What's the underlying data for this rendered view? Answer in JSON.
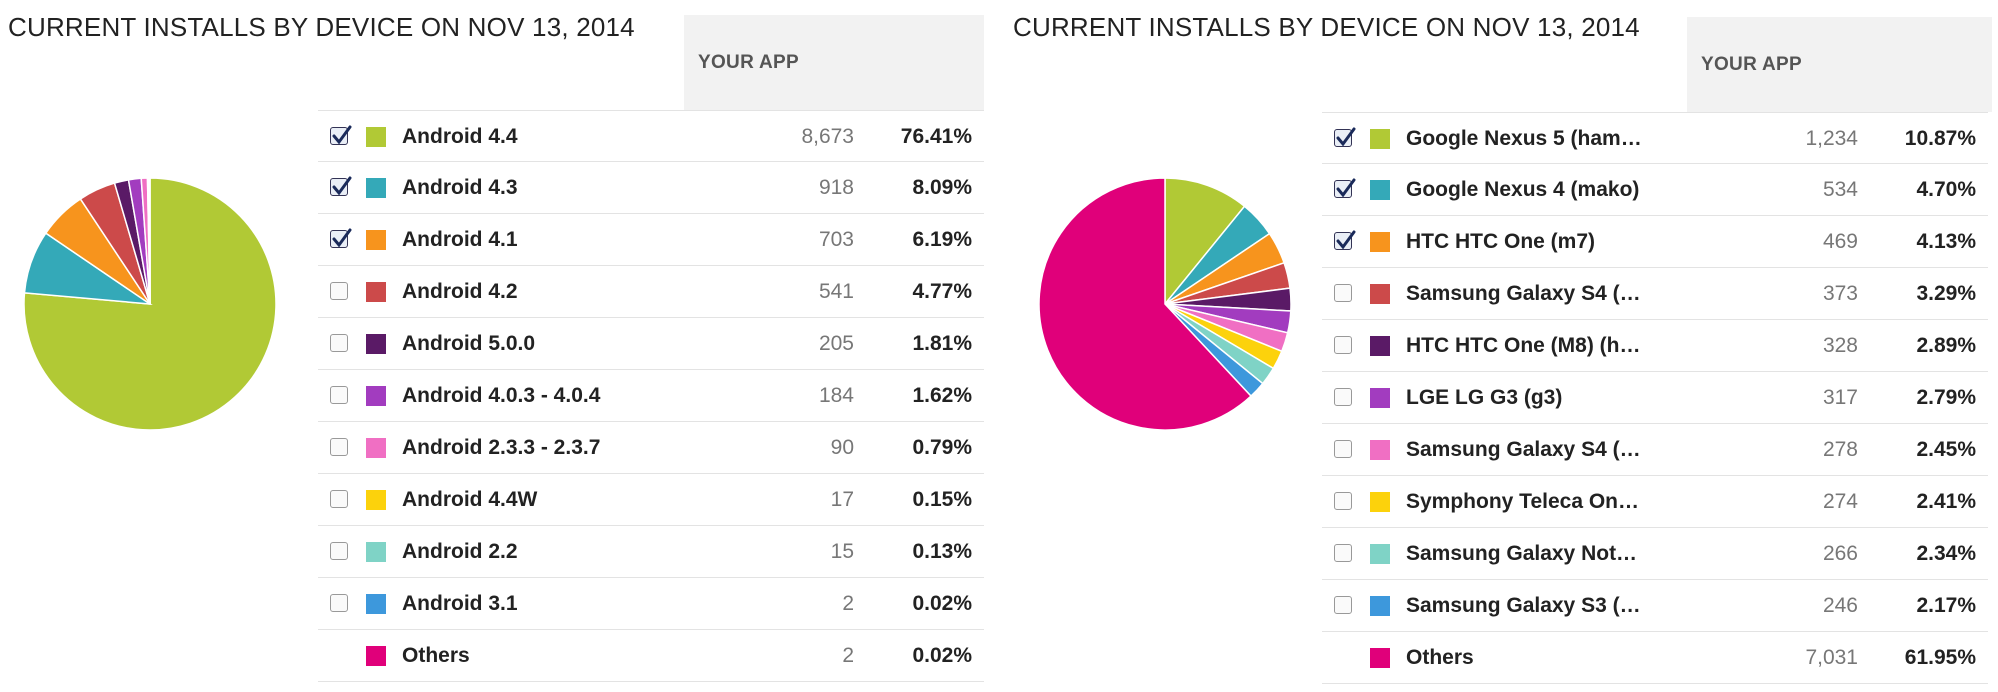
{
  "chart_data": [
    {
      "type": "pie",
      "title": "CURRENT INSTALLS BY DEVICE ON NOV 13, 2014",
      "column_header": "YOUR APP",
      "legend": "right",
      "slices": [
        {
          "label": "Android 4.4",
          "count": "8,673",
          "value": 76.41,
          "percent": "76.41%",
          "color": "#b1c935",
          "checked": true
        },
        {
          "label": "Android 4.3",
          "count": "918",
          "value": 8.09,
          "percent": "8.09%",
          "color": "#34a9b8",
          "checked": true
        },
        {
          "label": "Android 4.1",
          "count": "703",
          "value": 6.19,
          "percent": "6.19%",
          "color": "#f7941d",
          "checked": true
        },
        {
          "label": "Android 4.2",
          "count": "541",
          "value": 4.77,
          "percent": "4.77%",
          "color": "#cc4a4a",
          "checked": false
        },
        {
          "label": "Android 5.0.0",
          "count": "205",
          "value": 1.81,
          "percent": "1.81%",
          "color": "#5a1a66",
          "checked": false
        },
        {
          "label": "Android 4.0.3 - 4.0.4",
          "count": "184",
          "value": 1.62,
          "percent": "1.62%",
          "color": "#a23cbf",
          "checked": false
        },
        {
          "label": "Android 2.3.3 - 2.3.7",
          "count": "90",
          "value": 0.79,
          "percent": "0.79%",
          "color": "#f06fc3",
          "checked": false
        },
        {
          "label": "Android 4.4W",
          "count": "17",
          "value": 0.15,
          "percent": "0.15%",
          "color": "#fcd20c",
          "checked": false
        },
        {
          "label": "Android 2.2",
          "count": "15",
          "value": 0.13,
          "percent": "0.13%",
          "color": "#7fd3c6",
          "checked": false
        },
        {
          "label": "Android 3.1",
          "count": "2",
          "value": 0.02,
          "percent": "0.02%",
          "color": "#3d98dc",
          "checked": false
        },
        {
          "label": "Others",
          "count": "2",
          "value": 0.02,
          "percent": "0.02%",
          "color": "#e0007a",
          "checked": null
        }
      ]
    },
    {
      "type": "pie",
      "title": "CURRENT INSTALLS BY DEVICE ON NOV 13, 2014",
      "column_header": "YOUR APP",
      "legend": "right",
      "slices": [
        {
          "label": "Google Nexus 5 (ham…",
          "count": "1,234",
          "value": 10.87,
          "percent": "10.87%",
          "color": "#b1c935",
          "checked": true
        },
        {
          "label": "Google Nexus 4 (mako)",
          "count": "534",
          "value": 4.7,
          "percent": "4.70%",
          "color": "#34a9b8",
          "checked": true
        },
        {
          "label": "HTC HTC One (m7)",
          "count": "469",
          "value": 4.13,
          "percent": "4.13%",
          "color": "#f7941d",
          "checked": true
        },
        {
          "label": "Samsung Galaxy S4 (…",
          "count": "373",
          "value": 3.29,
          "percent": "3.29%",
          "color": "#cc4a4a",
          "checked": false
        },
        {
          "label": "HTC HTC One (M8) (h…",
          "count": "328",
          "value": 2.89,
          "percent": "2.89%",
          "color": "#5a1a66",
          "checked": false
        },
        {
          "label": "LGE LG G3 (g3)",
          "count": "317",
          "value": 2.79,
          "percent": "2.79%",
          "color": "#a23cbf",
          "checked": false
        },
        {
          "label": "Samsung Galaxy S4 (…",
          "count": "278",
          "value": 2.45,
          "percent": "2.45%",
          "color": "#f06fc3",
          "checked": false
        },
        {
          "label": "Symphony Teleca On…",
          "count": "274",
          "value": 2.41,
          "percent": "2.41%",
          "color": "#fcd20c",
          "checked": false
        },
        {
          "label": "Samsung Galaxy Not…",
          "count": "266",
          "value": 2.34,
          "percent": "2.34%",
          "color": "#7fd3c6",
          "checked": false
        },
        {
          "label": "Samsung Galaxy S3 (…",
          "count": "246",
          "value": 2.17,
          "percent": "2.17%",
          "color": "#3d98dc",
          "checked": false
        },
        {
          "label": "Others",
          "count": "7,031",
          "value": 61.95,
          "percent": "61.95%",
          "color": "#e0007a",
          "checked": null
        }
      ]
    }
  ]
}
